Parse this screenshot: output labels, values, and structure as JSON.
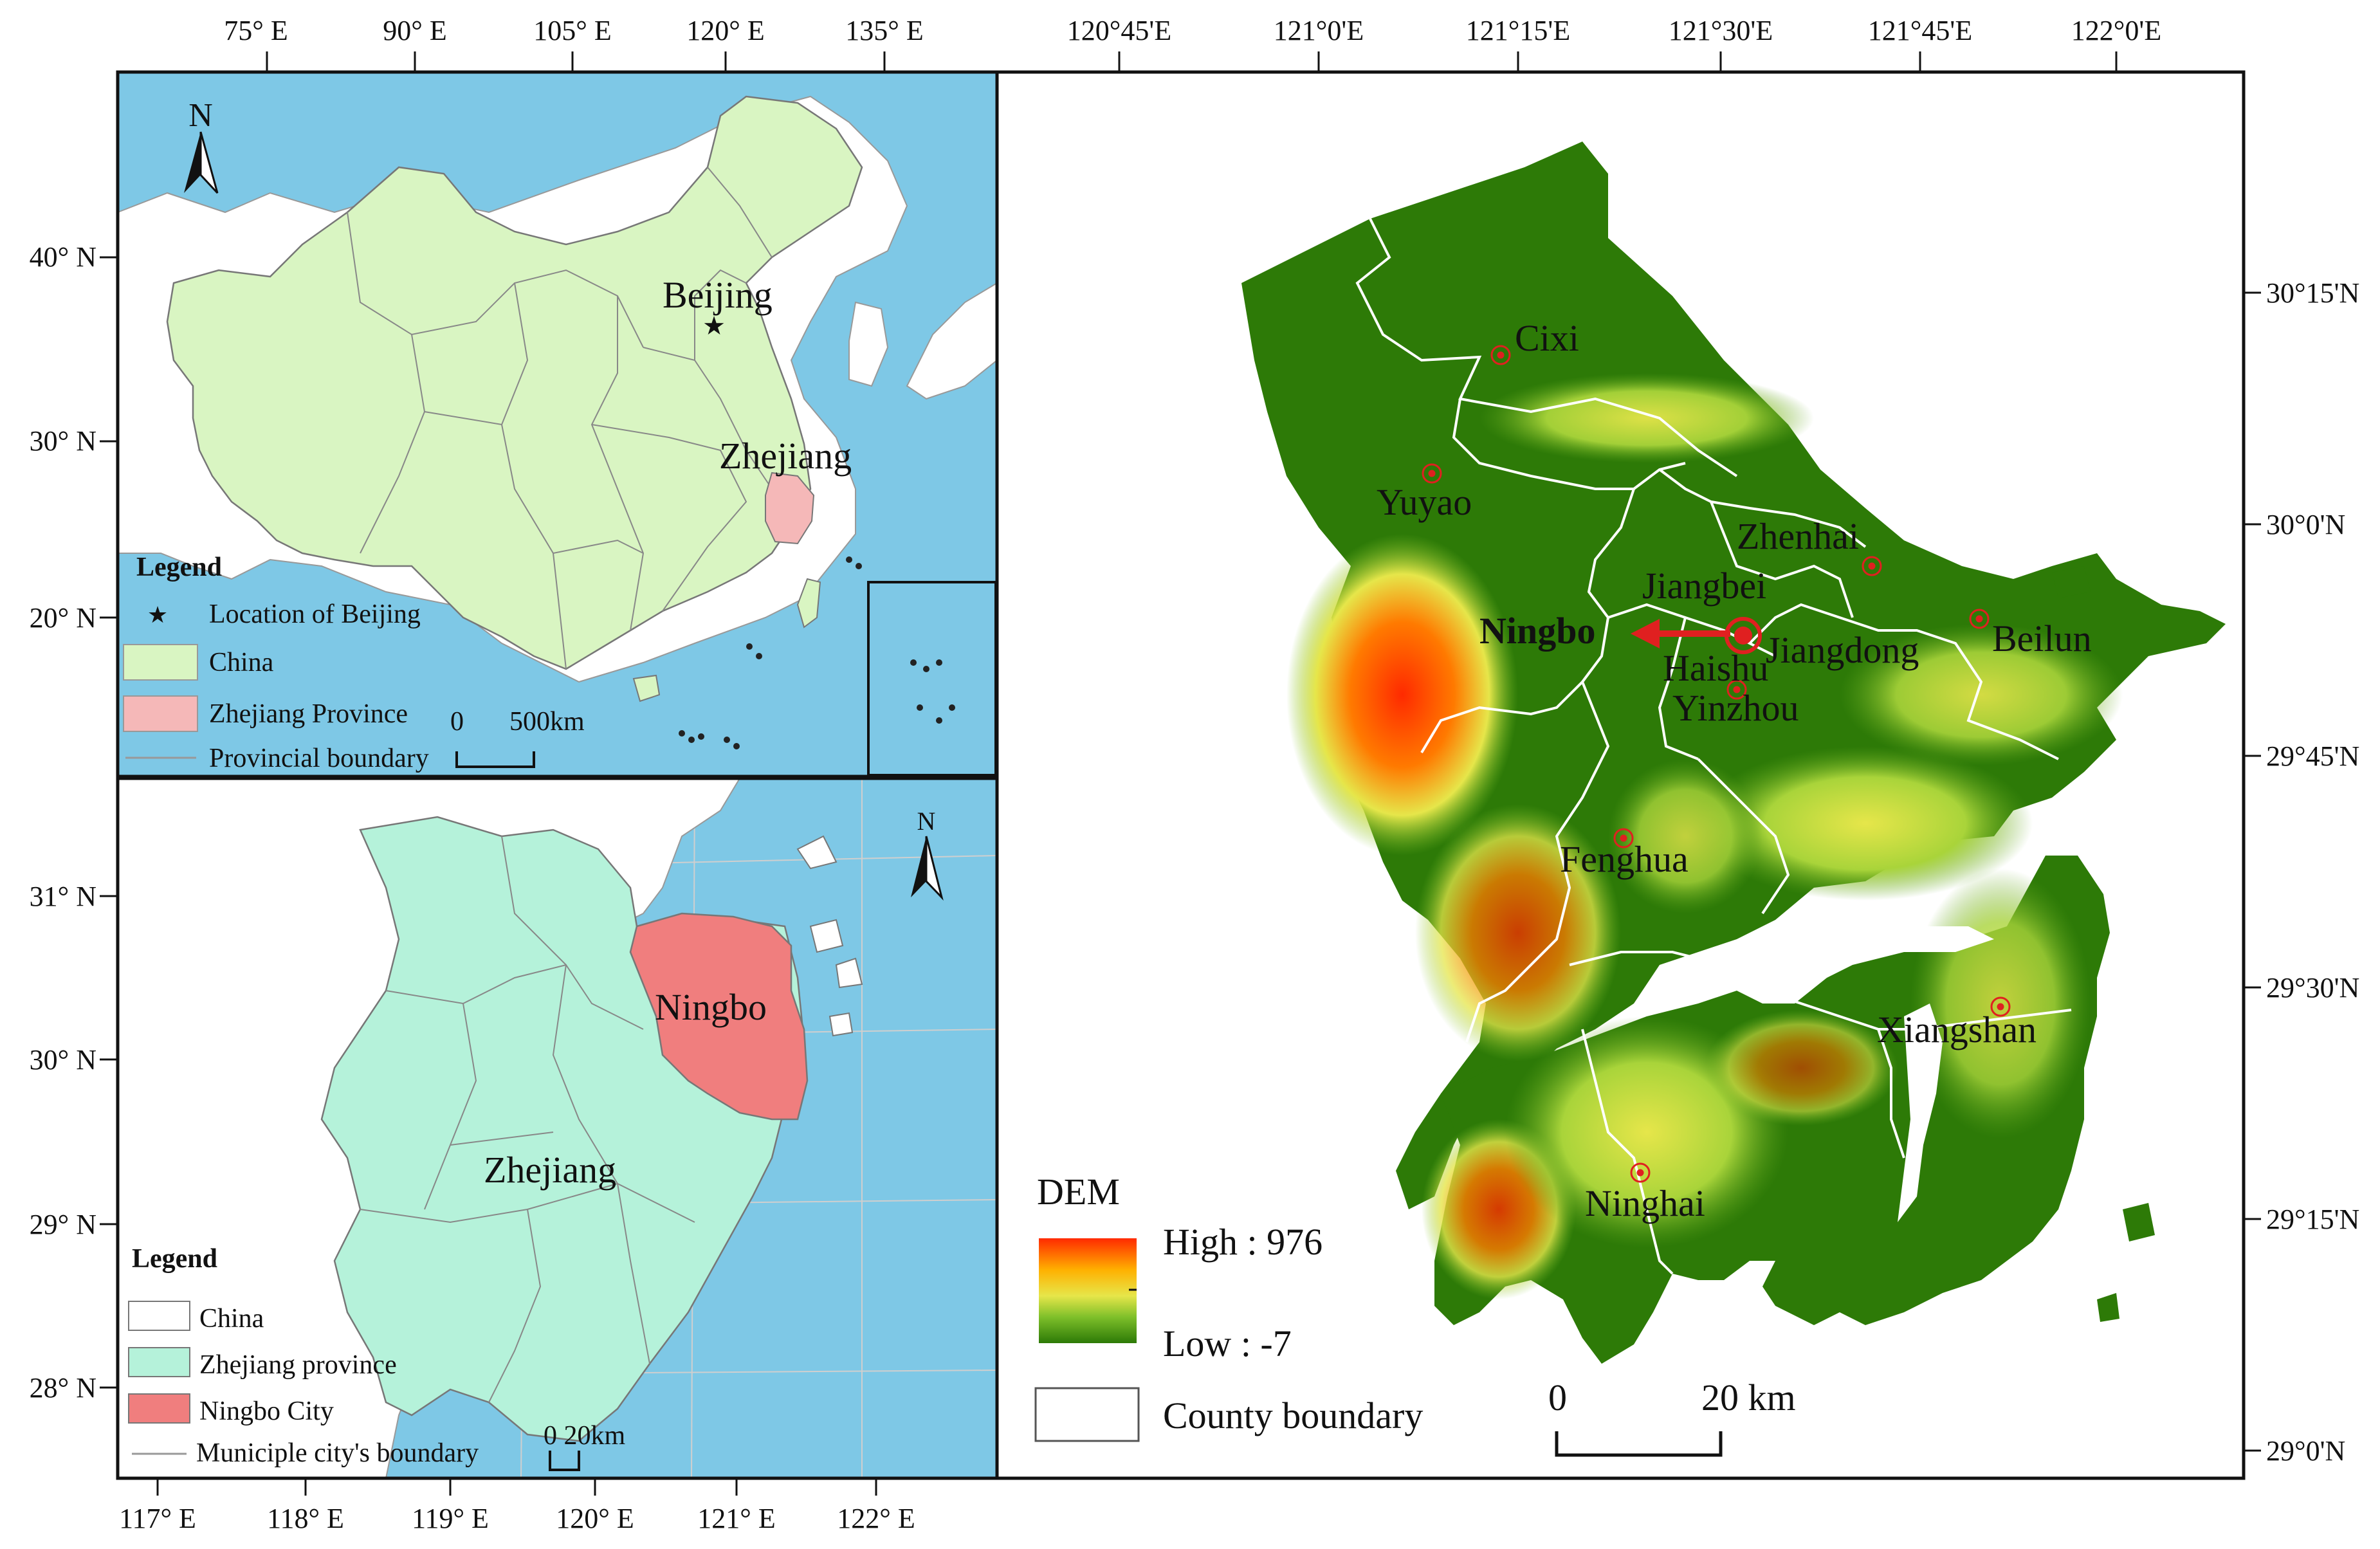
{
  "panel_china": {
    "top_ticks": [
      "75° E",
      "90° E",
      "105° E",
      "120° E",
      "135° E"
    ],
    "left_ticks": [
      "40° N",
      "30° N",
      "20° N"
    ],
    "labels": {
      "beijing": "Beijing",
      "zhejiang": "Zhejiang",
      "north": "N"
    },
    "legend": {
      "title": "Legend",
      "items": [
        "Location of Beijing",
        "China",
        "Zhejiang Province",
        "Provincial boundary"
      ]
    },
    "scale": {
      "zero": "0",
      "max": "500km"
    },
    "colors": {
      "land": "#d9f5c2",
      "sea": "#7ec8e6",
      "zhejiang": "#f5b8b8",
      "beijing_star": "#e02020"
    }
  },
  "panel_zhejiang": {
    "bottom_ticks": [
      "117° E",
      "118° E",
      "119° E",
      "120° E",
      "121° E",
      "122° E"
    ],
    "left_ticks": [
      "31° N",
      "30° N",
      "29° N",
      "28° N"
    ],
    "labels": {
      "ningbo": "Ningbo",
      "zhejiang": "Zhejiang",
      "north": "N"
    },
    "legend": {
      "title": "Legend",
      "items": [
        "China",
        "Zhejiang province",
        "Ningbo City",
        "Municiple city's boundary"
      ]
    },
    "scale": {
      "text": "0 20km"
    },
    "colors": {
      "province": "#b5f2da",
      "sea": "#7ec8e6",
      "ningbo": "#f07e7e"
    }
  },
  "panel_ningbo": {
    "top_ticks": [
      "120°45'E",
      "121°0'E",
      "121°15'E",
      "121°30'E",
      "121°45'E",
      "122°0'E"
    ],
    "right_ticks": [
      "30°15'N",
      "30°0'N",
      "29°45'N",
      "29°30'N",
      "29°15'N",
      "29°0'N"
    ],
    "places": [
      "Cixi",
      "Yuyao",
      "Zhenhai",
      "Jiangbei",
      "Ningbo",
      "Haishu",
      "Jiangdong",
      "Beilun",
      "Yinzhou",
      "Fenghua",
      "Xiangshan",
      "Ninghai"
    ],
    "legend": {
      "title": "DEM",
      "high": "High : 976",
      "low": "Low : -7",
      "boundary": "County boundary"
    },
    "scale": {
      "zero": "0",
      "max": "20 km"
    },
    "colors": {
      "low": "#2d7a07",
      "mid": "#e6e64a",
      "high": "#ff2a00"
    }
  }
}
